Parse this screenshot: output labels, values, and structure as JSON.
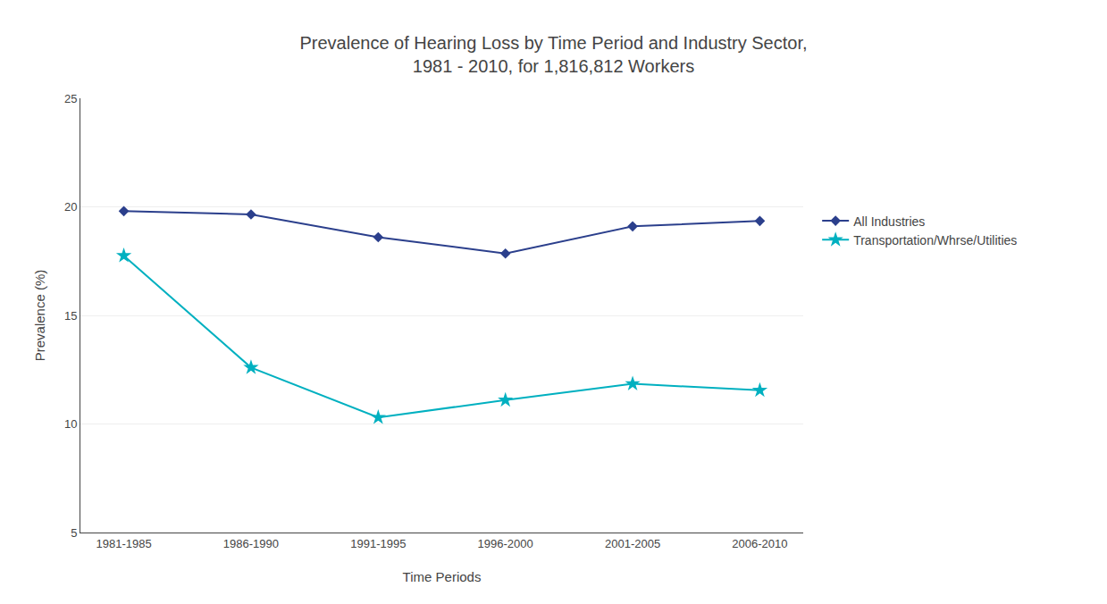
{
  "chart_data": {
    "type": "line",
    "title": "Prevalence of Hearing Loss by Time Period and Industry Sector,\n1981 - 2010, for 1,816,812 Workers",
    "x_label": "Time Periods",
    "y_label": "Prevalence (%)",
    "categories": [
      "1981-1985",
      "1986-1990",
      "1991-1995",
      "1996-2000",
      "2001-2005",
      "2006-2010"
    ],
    "series": [
      {
        "name": "All Industries",
        "color": "#2B3F8C",
        "marker": "diamond",
        "values": [
          19.8,
          19.65,
          18.6,
          17.85,
          19.1,
          19.35
        ]
      },
      {
        "name": "Transportation/Whrse/Utilities",
        "color": "#00B0C0",
        "marker": "star",
        "values": [
          17.75,
          12.6,
          10.3,
          11.1,
          11.85,
          11.55
        ]
      }
    ],
    "ylim": [
      5,
      25
    ],
    "yticks": [
      5,
      10,
      15,
      20,
      25
    ],
    "grid": true,
    "legend": "right"
  }
}
